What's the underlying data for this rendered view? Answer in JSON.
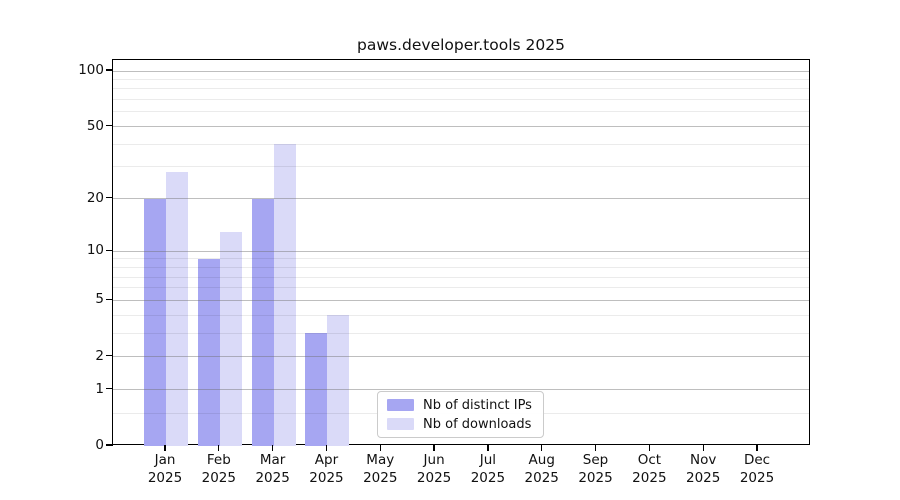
{
  "chart_data": {
    "type": "bar",
    "title": "paws.developer.tools 2025",
    "categories": [
      "Jan",
      "Feb",
      "Mar",
      "Apr",
      "May",
      "Jun",
      "Jul",
      "Aug",
      "Sep",
      "Oct",
      "Nov",
      "Dec"
    ],
    "category_year": "2025",
    "series": [
      {
        "name": "Nb of distinct IPs",
        "color": "#a6a6f2",
        "values": [
          20,
          9,
          20,
          3,
          0,
          0,
          0,
          0,
          0,
          0,
          0,
          0
        ]
      },
      {
        "name": "Nb of downloads",
        "color": "#dadaf8",
        "values": [
          28,
          13,
          40,
          4,
          0,
          0,
          0,
          0,
          0,
          0,
          0,
          0
        ]
      }
    ],
    "y_axis": {
      "scale": "log10(1+x)",
      "tick_values": [
        0,
        1,
        2,
        5,
        10,
        20,
        50,
        100
      ],
      "tick_labels": [
        "0",
        "1",
        "2",
        "5",
        "10",
        "20",
        "50",
        "100"
      ],
      "minor_tick_values": [
        0.5,
        3,
        4,
        6,
        7,
        8,
        9,
        30,
        40,
        60,
        70,
        80,
        90
      ],
      "range_max": 113
    },
    "x_axis": {
      "label_lines": 2
    },
    "legend": {
      "position": "bottom-center-inside",
      "entries": [
        "Nb of distinct IPs",
        "Nb of downloads"
      ]
    },
    "grid": "horizontal"
  }
}
